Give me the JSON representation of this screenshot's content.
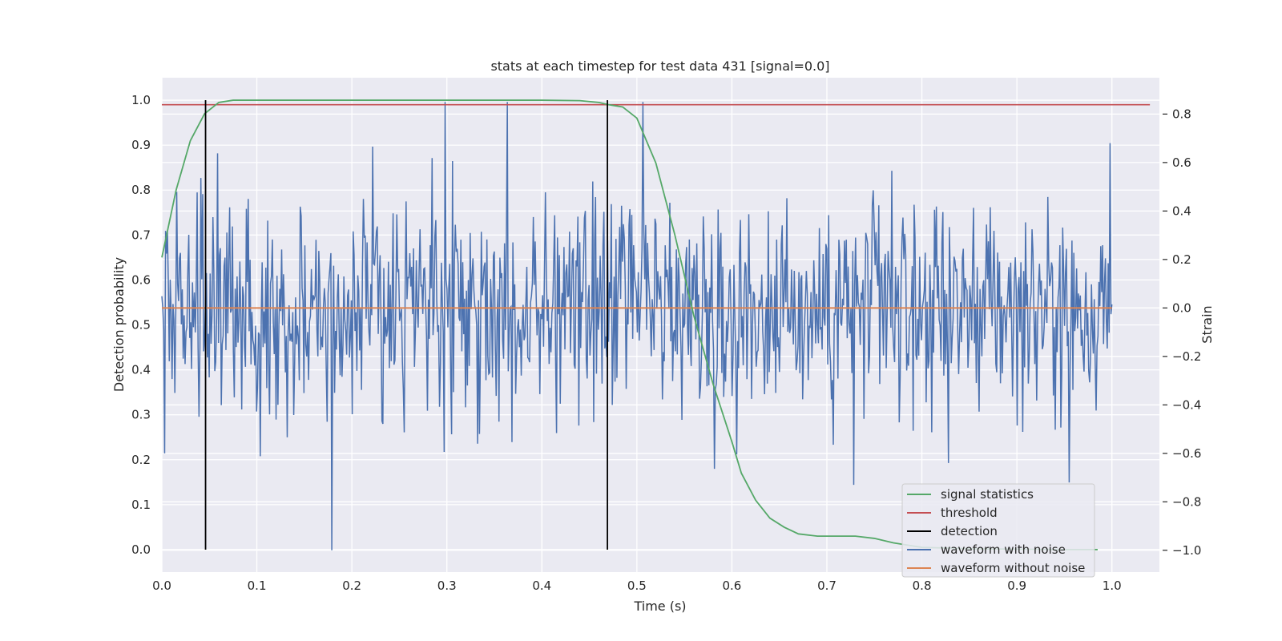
{
  "chart_data": {
    "type": "line",
    "title": "stats at each timestep for test data 431 [signal=0.0]",
    "xlabel": "Time (s)",
    "ylabel_left": "Detection probability",
    "ylabel_right": "Strain",
    "xlim": [
      0.0,
      1.05
    ],
    "ylim_left": [
      -0.05,
      1.05
    ],
    "ylim_right": [
      -1.09,
      0.95
    ],
    "x_ticks": [
      "0.0",
      "0.1",
      "0.2",
      "0.3",
      "0.4",
      "0.5",
      "0.6",
      "0.7",
      "0.8",
      "0.9",
      "1.0"
    ],
    "y_left_ticks": [
      "0.0",
      "0.1",
      "0.2",
      "0.3",
      "0.4",
      "0.5",
      "0.6",
      "0.7",
      "0.8",
      "0.9",
      "1.0"
    ],
    "y_right_ticks": [
      "−1.0",
      "−0.8",
      "−0.6",
      "−0.4",
      "−0.2",
      "0.0",
      "0.2",
      "0.4",
      "0.6",
      "0.8"
    ],
    "grid": true,
    "background": "#eaeaf2",
    "legend_position": "lower right",
    "legend": [
      {
        "label": "signal statistics",
        "color": "#55a868"
      },
      {
        "label": "threshold",
        "color": "#c44e52"
      },
      {
        "label": "detection",
        "color": "#000000"
      },
      {
        "label": "waveform with noise",
        "color": "#4c72b0"
      },
      {
        "label": "waveform without noise",
        "color": "#dd8452"
      }
    ],
    "signal_statistics": {
      "axis": "left",
      "x": [
        0.0,
        0.015,
        0.03,
        0.045,
        0.06,
        0.075,
        0.09,
        0.12,
        0.2,
        0.3,
        0.4,
        0.44,
        0.46,
        0.47,
        0.485,
        0.5,
        0.52,
        0.54,
        0.56,
        0.58,
        0.6,
        0.61,
        0.625,
        0.64,
        0.655,
        0.67,
        0.69,
        0.71,
        0.73,
        0.75,
        0.77,
        0.8,
        0.85,
        0.9,
        0.95,
        0.985
      ],
      "y": [
        0.65,
        0.8,
        0.91,
        0.97,
        0.995,
        1.0,
        1.0,
        1.0,
        1.0,
        1.0,
        1.0,
        0.999,
        0.995,
        0.99,
        0.985,
        0.96,
        0.86,
        0.7,
        0.52,
        0.37,
        0.24,
        0.17,
        0.11,
        0.07,
        0.05,
        0.035,
        0.03,
        0.03,
        0.03,
        0.025,
        0.015,
        0.005,
        0.002,
        0.001,
        0.0,
        0.0
      ]
    },
    "threshold": {
      "axis": "left",
      "y": 0.99,
      "x_range": [
        0.0,
        1.04
      ]
    },
    "detections": {
      "axis": "left",
      "x": [
        0.046,
        0.469
      ],
      "y_range": [
        0.0,
        1.0
      ]
    },
    "waveform_without_noise": {
      "axis": "right",
      "y": 0.0,
      "x_range": [
        0.0,
        1.0
      ]
    },
    "waveform_with_noise": {
      "axis": "right",
      "x_range": [
        0.0,
        1.0
      ],
      "n_points": 1024,
      "std": 0.22,
      "notable_points": [
        {
          "x": 0.003,
          "y": -0.6
        },
        {
          "x": 0.179,
          "y": -1.0
        },
        {
          "x": 0.298,
          "y": 0.85
        },
        {
          "x": 0.364,
          "y": 0.85
        },
        {
          "x": 0.506,
          "y": 0.85
        },
        {
          "x": 0.728,
          "y": -0.73
        },
        {
          "x": 0.955,
          "y": -0.72
        },
        {
          "x": 0.998,
          "y": 0.68
        }
      ]
    }
  }
}
